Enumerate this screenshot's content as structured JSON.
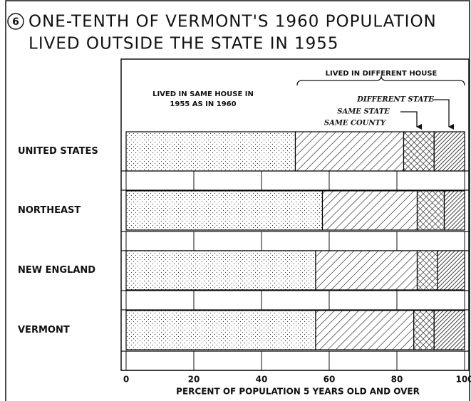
{
  "chart_data": {
    "type": "stacked-bar-horizontal",
    "figure_number": "6",
    "title_lines": [
      "ONE-TENTH OF VERMONT'S 1960 POPULATION",
      "LIVED OUTSIDE THE STATE IN 1955"
    ],
    "group_label": "LIVED IN DIFFERENT HOUSE",
    "categories": [
      "UNITED STATES",
      "NORTHEAST",
      "NEW ENGLAND",
      "VERMONT"
    ],
    "series": [
      {
        "name": "LIVED IN SAME HOUSE IN 1955 AS IN 1960",
        "color": "#000000",
        "pattern": "dots",
        "values": [
          50,
          58,
          56,
          56
        ]
      },
      {
        "name": "SAME COUNTY",
        "color": "#000000",
        "pattern": "hatch",
        "values": [
          32,
          28,
          30,
          29
        ]
      },
      {
        "name": "SAME STATE",
        "color": "#000000",
        "pattern": "cross",
        "values": [
          9,
          8,
          6,
          6
        ]
      },
      {
        "name": "DIFFERENT STATE",
        "color": "#000000",
        "pattern": "dense",
        "values": [
          9,
          6,
          8,
          9
        ]
      }
    ],
    "xlim": [
      0,
      100
    ],
    "xticks": [
      0,
      20,
      40,
      60,
      80,
      100
    ],
    "xlabel": "PERCENT OF POPULATION 5 YEARS OLD AND OVER"
  }
}
